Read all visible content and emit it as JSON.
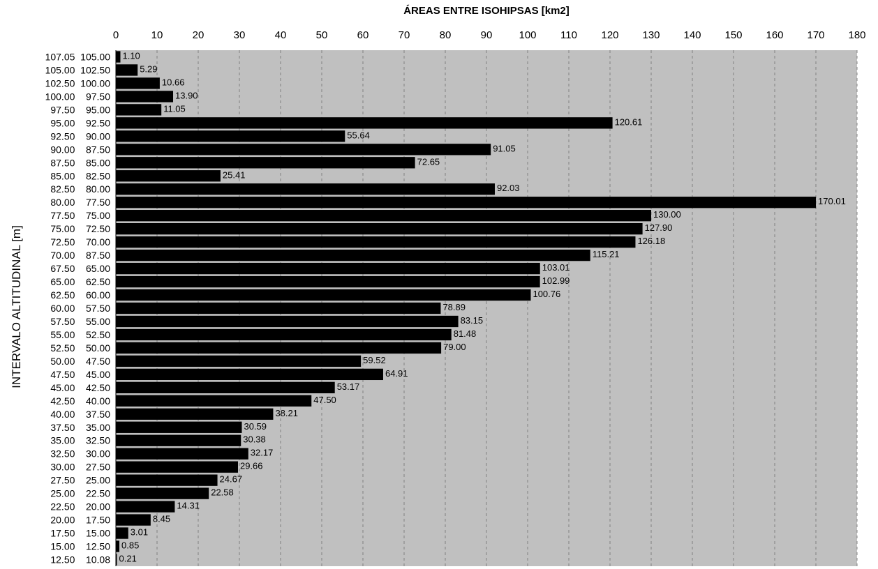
{
  "chart_data": {
    "type": "bar",
    "orientation": "horizontal",
    "title": "ÁREAS ENTRE ISOHIPSAS [km2]",
    "xlabel": "ÁREAS ENTRE ISOHIPSAS [km2]",
    "ylabel": "INTERVALO ALTITUDINAL [m]",
    "xlim": [
      0,
      180
    ],
    "xticks": [
      "0",
      "10",
      "20",
      "30",
      "40",
      "50",
      "60",
      "70",
      "80",
      "90",
      "100",
      "110",
      "120",
      "130",
      "140",
      "150",
      "160",
      "170",
      "180"
    ],
    "x_axis_position": "top",
    "grid": "vertical dashed",
    "colors": {
      "bar": "#000000",
      "plot_background": "#c0c0c0"
    },
    "categories": [
      "107.05  105.00",
      "105.00  102.50",
      "102.50  100.00",
      "100.00    97.50",
      "97.50    95.00",
      "95.00    92.50",
      "92.50    90.00",
      "90.00    87.50",
      "87.50    85.00",
      "85.00    82.50",
      "82.50    80.00",
      "80.00    77.50",
      "77.50    75.00",
      "75.00    72.50",
      "72.50    70.00",
      "70.00    87.50",
      "67.50    65.00",
      "65.00    62.50",
      "62.50    60.00",
      "60.00    57.50",
      "57.50    55.00",
      "55.00    52.50",
      "52.50    50.00",
      "50.00    47.50",
      "47.50    45.00",
      "45.00    42.50",
      "42.50    40.00",
      "40.00    37.50",
      "37.50    35.00",
      "35.00    32.50",
      "32.50    30.00",
      "30.00    27.50",
      "27.50    25.00",
      "25.00    22.50",
      "22.50    20.00",
      "20.00    17.50",
      "17.50    15.00",
      "15.00    12.50",
      "12.50    10.08"
    ],
    "values": [
      1.1,
      5.29,
      10.66,
      13.9,
      11.05,
      120.61,
      55.64,
      91.05,
      72.65,
      25.41,
      92.03,
      170.01,
      130.0,
      127.9,
      126.18,
      115.21,
      103.01,
      102.99,
      100.76,
      78.89,
      83.15,
      81.48,
      79.0,
      59.52,
      64.91,
      53.17,
      47.5,
      38.21,
      30.59,
      30.38,
      32.17,
      29.66,
      24.67,
      22.58,
      14.31,
      8.45,
      3.01,
      0.85,
      0.21
    ],
    "value_labels": [
      "1.10",
      "5.29",
      "10.66",
      "13.90",
      "11.05",
      "120.61",
      "55.64",
      "91.05",
      "72.65",
      "25.41",
      "92.03",
      "170.01",
      "130.00",
      "127.90",
      "126.18",
      "115.21",
      "103.01",
      "102.99",
      "100.76",
      "78.89",
      "83.15",
      "81.48",
      "79.00",
      "59.52",
      "64.91",
      "53.17",
      "47.50",
      "38.21",
      "30.59",
      "30.38",
      "32.17",
      "29.66",
      "24.67",
      "22.58",
      "14.31",
      "8.45",
      "3.01",
      "0.85",
      "0.21"
    ]
  }
}
